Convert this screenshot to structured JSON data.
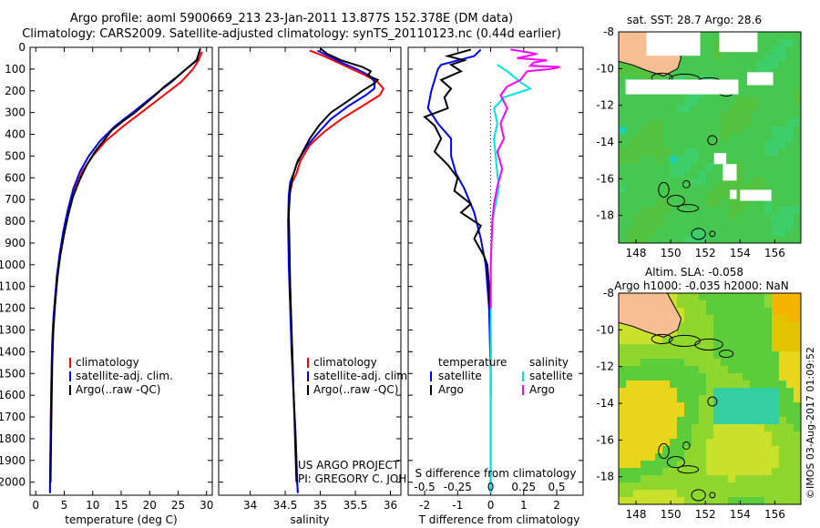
{
  "header": {
    "line1": "Argo profile: aoml 5900669_213 23-Jan-2011 13.877S 152.378E (DM data)",
    "line2": "Climatology: CARS2009. Satellite-adjusted climatology: synTS_20110123.nc (0.44d earlier)"
  },
  "colors": {
    "climatology": "#ff0000",
    "satellite": "#0000ff",
    "argo": "#000000",
    "sat_s": "#00e5e5",
    "argo_s": "#ff00ff"
  },
  "chart_data": [
    {
      "type": "line",
      "id": "temperature",
      "xlabel": "temperature (deg C)",
      "xlim": [
        -1,
        31
      ],
      "xticks": [
        0,
        5,
        10,
        15,
        20,
        25,
        30
      ],
      "ylim": [
        2060,
        0
      ],
      "yticks": [
        0,
        100,
        200,
        300,
        400,
        500,
        600,
        700,
        800,
        900,
        1000,
        1100,
        1200,
        1300,
        1400,
        1500,
        1600,
        1700,
        1800,
        1900,
        2000
      ],
      "legend": [
        "climatology",
        "satellite-adj. clim.",
        "Argo(..raw -QC)"
      ],
      "series": [
        {
          "name": "climatology",
          "points": [
            [
              29.2,
              20
            ],
            [
              28.6,
              60
            ],
            [
              27.6,
              100
            ],
            [
              25.5,
              160
            ],
            [
              22.5,
              220
            ],
            [
              19,
              290
            ],
            [
              15.5,
              360
            ],
            [
              12.3,
              430
            ],
            [
              10,
              500
            ],
            [
              8.2,
              570
            ],
            [
              6.9,
              650
            ],
            [
              5.9,
              750
            ],
            [
              5,
              850
            ],
            [
              4.3,
              950
            ],
            [
              3.8,
              1050
            ],
            [
              3.4,
              1150
            ],
            [
              3.1,
              1250
            ],
            [
              2.9,
              1350
            ],
            [
              2.8,
              1450
            ],
            [
              2.7,
              1600
            ],
            [
              2.6,
              1800
            ],
            [
              2.5,
              2000
            ],
            [
              2.5,
              2050
            ]
          ]
        },
        {
          "name": "satellite-adj. clim.",
          "points": [
            [
              28.8,
              20
            ],
            [
              28.2,
              60
            ],
            [
              26.4,
              100
            ],
            [
              23.8,
              160
            ],
            [
              20.8,
              220
            ],
            [
              17.5,
              290
            ],
            [
              14,
              360
            ],
            [
              11.3,
              430
            ],
            [
              9.3,
              500
            ],
            [
              7.8,
              570
            ],
            [
              6.6,
              650
            ],
            [
              5.6,
              750
            ],
            [
              4.8,
              850
            ],
            [
              4.2,
              950
            ],
            [
              3.7,
              1050
            ],
            [
              3.4,
              1150
            ],
            [
              3.1,
              1250
            ],
            [
              2.9,
              1350
            ],
            [
              2.8,
              1450
            ],
            [
              2.7,
              1600
            ],
            [
              2.6,
              1800
            ],
            [
              2.5,
              2000
            ],
            [
              2.5,
              2050
            ]
          ]
        },
        {
          "name": "Argo(..raw -QC)",
          "points": [
            [
              28.9,
              5
            ],
            [
              28.6,
              30
            ],
            [
              28.3,
              60
            ],
            [
              26.4,
              100
            ],
            [
              24.6,
              140
            ],
            [
              22.6,
              180
            ],
            [
              21,
              220
            ],
            [
              19.2,
              260
            ],
            [
              17.4,
              300
            ],
            [
              15.3,
              340
            ],
            [
              13.4,
              380
            ],
            [
              11.9,
              430
            ],
            [
              10.4,
              480
            ],
            [
              9,
              540
            ],
            [
              7.7,
              610
            ],
            [
              6.5,
              690
            ],
            [
              5.6,
              780
            ],
            [
              4.9,
              870
            ],
            [
              4.3,
              960
            ],
            [
              3.8,
              1060
            ],
            [
              3.4,
              1180
            ],
            [
              3.1,
              1300
            ],
            [
              2.9,
              1450
            ],
            [
              2.8,
              1600
            ],
            [
              2.7,
              1800
            ],
            [
              2.6,
              2000
            ]
          ]
        }
      ]
    },
    {
      "type": "line",
      "id": "salinity",
      "xlabel": "salinity",
      "xlim": [
        33.55,
        36.15
      ],
      "xticks": [
        34,
        34.5,
        35,
        35.5,
        36
      ],
      "ylim": [
        2060,
        0
      ],
      "legend": [
        "climatology",
        "satellite-adj. clim.",
        "Argo(..raw -QC)"
      ],
      "annotation": [
        "US ARGO PROJECT",
        "PI: GREGORY C. JOHNSON"
      ],
      "series": [
        {
          "name": "climatology",
          "points": [
            [
              34.85,
              15
            ],
            [
              35.05,
              40
            ],
            [
              35.25,
              70
            ],
            [
              35.45,
              100
            ],
            [
              35.65,
              130
            ],
            [
              35.82,
              160
            ],
            [
              35.9,
              190
            ],
            [
              35.85,
              220
            ],
            [
              35.6,
              270
            ],
            [
              35.3,
              330
            ],
            [
              35.05,
              390
            ],
            [
              34.85,
              450
            ],
            [
              34.72,
              520
            ],
            [
              34.66,
              580
            ],
            [
              34.6,
              620
            ],
            [
              34.56,
              680
            ],
            [
              34.55,
              800
            ],
            [
              34.56,
              1000
            ],
            [
              34.58,
              1200
            ],
            [
              34.6,
              1400
            ],
            [
              34.62,
              1600
            ],
            [
              34.65,
              1800
            ],
            [
              34.67,
              2000
            ],
            [
              34.68,
              2050
            ]
          ]
        },
        {
          "name": "satellite-adj. clim.",
          "points": [
            [
              34.96,
              15
            ],
            [
              35.12,
              40
            ],
            [
              35.3,
              70
            ],
            [
              35.52,
              100
            ],
            [
              35.7,
              130
            ],
            [
              35.78,
              160
            ],
            [
              35.77,
              190
            ],
            [
              35.65,
              220
            ],
            [
              35.4,
              270
            ],
            [
              35.15,
              330
            ],
            [
              34.98,
              390
            ],
            [
              34.82,
              450
            ],
            [
              34.68,
              520
            ],
            [
              34.62,
              580
            ],
            [
              34.57,
              620
            ],
            [
              34.55,
              680
            ],
            [
              34.54,
              800
            ],
            [
              34.55,
              1000
            ],
            [
              34.57,
              1200
            ],
            [
              34.59,
              1400
            ],
            [
              34.62,
              1600
            ],
            [
              34.65,
              1800
            ],
            [
              34.67,
              2000
            ],
            [
              34.68,
              2050
            ]
          ]
        },
        {
          "name": "Argo(..raw -QC)",
          "points": [
            [
              35.0,
              5
            ],
            [
              35.1,
              30
            ],
            [
              35.3,
              60
            ],
            [
              35.6,
              90
            ],
            [
              35.72,
              110
            ],
            [
              35.68,
              130
            ],
            [
              35.82,
              150
            ],
            [
              35.75,
              170
            ],
            [
              35.6,
              200
            ],
            [
              35.38,
              250
            ],
            [
              35.15,
              300
            ],
            [
              34.98,
              360
            ],
            [
              34.85,
              420
            ],
            [
              34.75,
              480
            ],
            [
              34.66,
              540
            ],
            [
              34.6,
              600
            ],
            [
              34.57,
              660
            ],
            [
              34.55,
              760
            ],
            [
              34.56,
              900
            ],
            [
              34.57,
              1100
            ],
            [
              34.59,
              1300
            ],
            [
              34.61,
              1500
            ],
            [
              34.63,
              1700
            ],
            [
              34.65,
              1900
            ],
            [
              34.66,
              2000
            ]
          ]
        }
      ]
    },
    {
      "type": "line",
      "id": "differences",
      "xlabel": "T difference from climatology",
      "xlabel_top": "S difference from climatology",
      "xlim": [
        -2.5,
        2.8
      ],
      "xticks": [
        -2,
        -1,
        0,
        1,
        2
      ],
      "s_ticks": [
        "-0.5",
        "-0.25",
        "0",
        "0.25",
        "0.5"
      ],
      "s_tick_pos": [
        -2,
        -1,
        0,
        1,
        2
      ],
      "ylim": [
        2060,
        0
      ],
      "legend_t_title": "temperature",
      "legend_s_title": "salinity",
      "legend_t": [
        "satellite",
        "Argo"
      ],
      "legend_s": [
        "satellite",
        "Argo"
      ],
      "series": [
        {
          "name": "T satellite",
          "points": [
            [
              -0.3,
              10
            ],
            [
              -0.5,
              40
            ],
            [
              -1.5,
              80
            ],
            [
              -1.6,
              100
            ],
            [
              -1.7,
              150
            ],
            [
              -1.8,
              200
            ],
            [
              -1.9,
              280
            ],
            [
              -1.6,
              350
            ],
            [
              -1.2,
              420
            ],
            [
              -1.2,
              500
            ],
            [
              -1.05,
              580
            ],
            [
              -0.8,
              650
            ],
            [
              -0.5,
              760
            ],
            [
              -0.3,
              880
            ],
            [
              -0.15,
              1000
            ],
            [
              -0.05,
              1200
            ],
            [
              0,
              1500
            ],
            [
              0,
              2050
            ]
          ]
        },
        {
          "name": "T Argo",
          "points": [
            [
              -0.6,
              10
            ],
            [
              -1.3,
              40
            ],
            [
              -0.8,
              60
            ],
            [
              -1.2,
              80
            ],
            [
              -0.9,
              110
            ],
            [
              -1.5,
              150
            ],
            [
              -1.2,
              190
            ],
            [
              -1.4,
              230
            ],
            [
              -1.3,
              280
            ],
            [
              -2.0,
              320
            ],
            [
              -1.7,
              360
            ],
            [
              -1.5,
              420
            ],
            [
              -1.7,
              480
            ],
            [
              -1.3,
              540
            ],
            [
              -1.0,
              600
            ],
            [
              -1.1,
              660
            ],
            [
              -0.6,
              720
            ],
            [
              -0.9,
              760
            ],
            [
              -0.3,
              820
            ],
            [
              -0.5,
              880
            ],
            [
              -0.2,
              960
            ],
            [
              -0.1,
              1000
            ],
            [
              -0.05,
              1100
            ],
            [
              0,
              1300
            ],
            [
              0,
              1600
            ]
          ]
        },
        {
          "name": "S satellite",
          "points": [
            [
              0.2,
              80
            ],
            [
              0.5,
              110
            ],
            [
              0.9,
              160
            ],
            [
              1.2,
              190
            ],
            [
              0.4,
              230
            ],
            [
              0.1,
              280
            ],
            [
              0.2,
              350
            ],
            [
              0.1,
              420
            ],
            [
              0.15,
              500
            ],
            [
              0.2,
              580
            ],
            [
              0.25,
              640
            ],
            [
              0.15,
              720
            ],
            [
              0.05,
              800
            ],
            [
              0,
              1000
            ],
            [
              0,
              2050
            ]
          ]
        },
        {
          "name": "S Argo",
          "points": [
            [
              0.6,
              10
            ],
            [
              1.4,
              30
            ],
            [
              0.8,
              50
            ],
            [
              1.7,
              60
            ],
            [
              1.3,
              70
            ],
            [
              1.2,
              85
            ],
            [
              2.1,
              90
            ],
            [
              1.8,
              100
            ],
            [
              1.1,
              110
            ],
            [
              1.0,
              130
            ],
            [
              0.9,
              150
            ],
            [
              0.5,
              180
            ],
            [
              0.3,
              220
            ],
            [
              0.5,
              280
            ],
            [
              0.3,
              350
            ],
            [
              0.4,
              420
            ],
            [
              0.2,
              480
            ],
            [
              0.35,
              560
            ],
            [
              0.2,
              640
            ],
            [
              0.1,
              720
            ],
            [
              0.05,
              800
            ],
            [
              0,
              1000
            ],
            [
              0,
              1200
            ]
          ]
        }
      ]
    },
    {
      "type": "heatmap",
      "id": "sst_map",
      "title": "sat. SST: 28.7  Argo: 28.6",
      "xlim": [
        147,
        157.5
      ],
      "ylim": [
        -19.5,
        -8
      ],
      "xticks": [
        148,
        150,
        152,
        154,
        156
      ],
      "yticks": [
        -8,
        -10,
        -12,
        -14,
        -16,
        -18
      ],
      "marker": {
        "lon": 152.4,
        "lat": -13.9
      }
    },
    {
      "type": "heatmap",
      "id": "sla_map",
      "title": [
        "Altim. SLA: -0.058",
        "Argo h1000: -0.035 h2000: NaN"
      ],
      "xlim": [
        147,
        157.5
      ],
      "ylim": [
        -19.5,
        -8
      ],
      "xticks": [
        148,
        150,
        152,
        154,
        156
      ],
      "yticks": [
        -8,
        -10,
        -12,
        -14,
        -16,
        -18
      ],
      "marker": {
        "lon": 152.4,
        "lat": -13.9
      }
    }
  ],
  "side_label": "©IMOS 03-Aug-2017 01:09:52"
}
